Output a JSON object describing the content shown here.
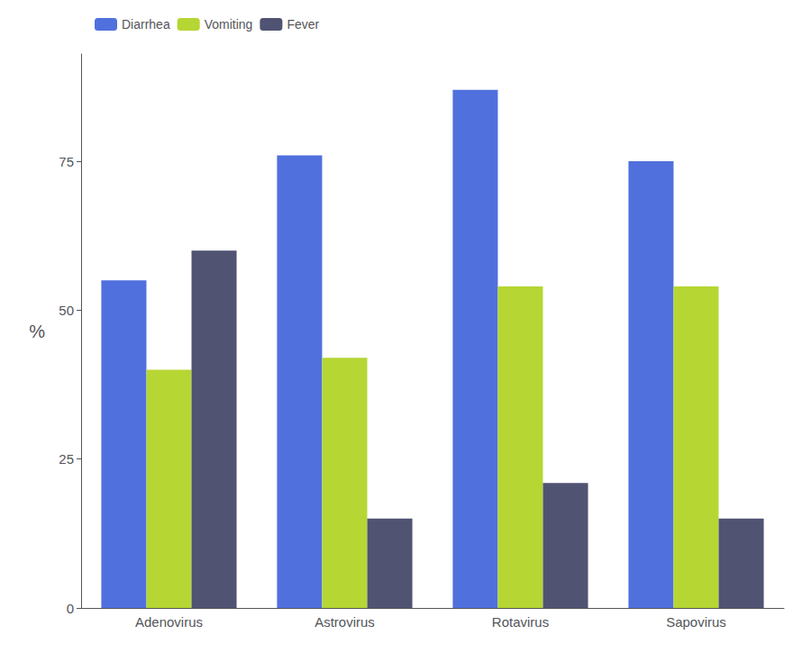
{
  "chart_data": {
    "type": "bar",
    "categories": [
      "Adenovirus",
      "Astrovirus",
      "Rotavirus",
      "Sapovirus"
    ],
    "series": [
      {
        "name": "Diarrhea",
        "values": [
          55,
          76,
          87,
          75
        ]
      },
      {
        "name": "Vomiting",
        "values": [
          40,
          42,
          54,
          54
        ]
      },
      {
        "name": "Fever",
        "values": [
          60,
          15,
          21,
          15
        ]
      }
    ],
    "ylabel": "%",
    "ylim": [
      0,
      93
    ],
    "yticks": [
      0,
      25,
      50,
      75
    ],
    "grid": false,
    "legend": "upper left"
  }
}
